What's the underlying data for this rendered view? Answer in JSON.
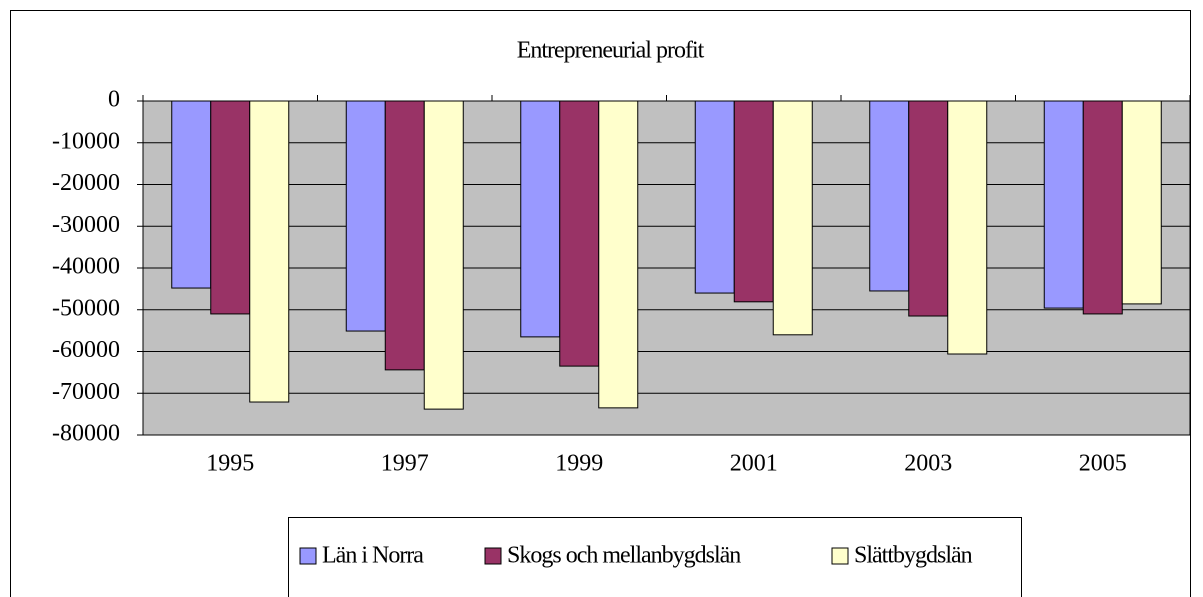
{
  "chart_data": {
    "type": "bar",
    "title": "Entrepreneurial profit",
    "categories": [
      "1995",
      "1997",
      "1999",
      "2001",
      "2003",
      "2005"
    ],
    "series": [
      {
        "name": "Län i Norra",
        "color": "#9999ff",
        "values": [
          -44800,
          -55100,
          -56500,
          -46000,
          -45500,
          -49600
        ]
      },
      {
        "name": "Skogs och mellanbygdslän",
        "color": "#993366",
        "values": [
          -51000,
          -64400,
          -63500,
          -48100,
          -51500,
          -51000
        ]
      },
      {
        "name": "Slättbygdslän",
        "color": "#ffffcc",
        "values": [
          -72100,
          -73800,
          -73500,
          -56000,
          -60600,
          -48600
        ]
      }
    ],
    "ylim": [
      -80000,
      0
    ],
    "yticks": [
      0,
      -10000,
      -20000,
      -30000,
      -40000,
      -50000,
      -60000,
      -70000,
      -80000
    ],
    "grid": true,
    "plot_background": "#c0c0c0",
    "legend": "bottom"
  }
}
